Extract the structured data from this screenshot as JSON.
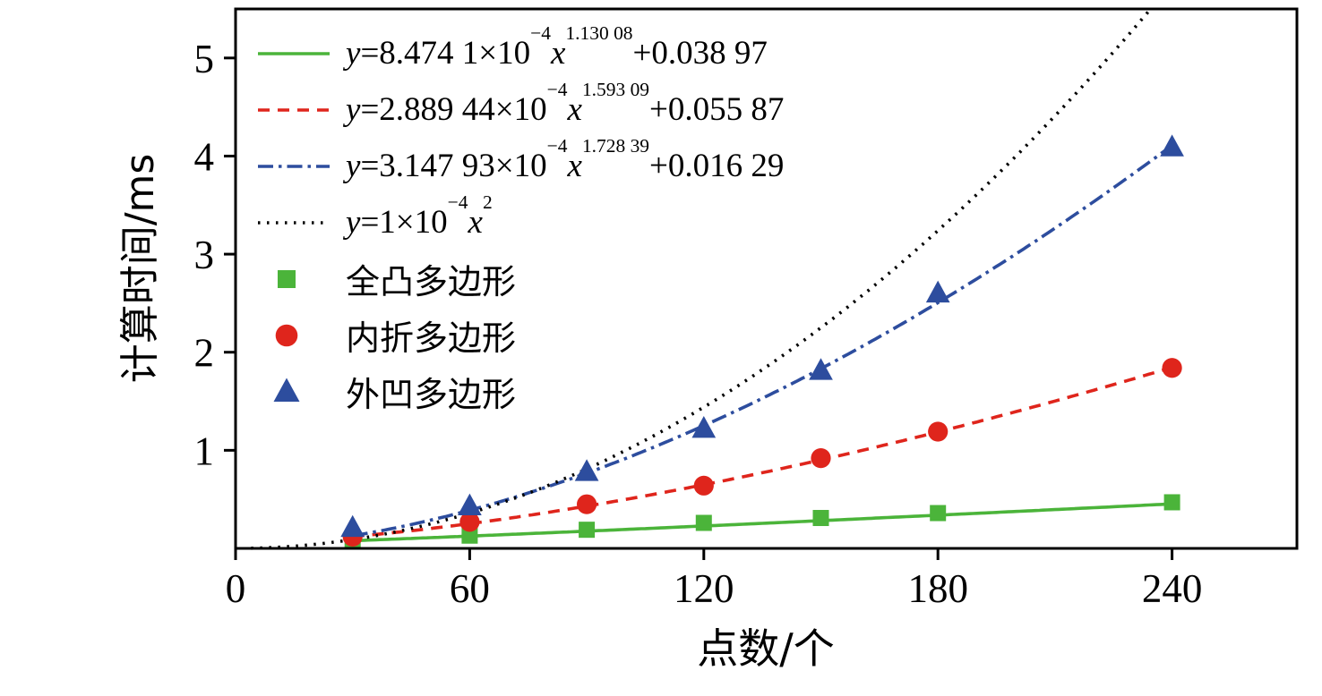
{
  "figure": {
    "background": "#ffffff"
  },
  "chart_data": {
    "type": "scatter",
    "title": "",
    "xlabel": "点数/个",
    "ylabel": "计算时间/ms",
    "xlim": [
      0,
      272
    ],
    "ylim": [
      0,
      5.5
    ],
    "xticks": [
      0,
      60,
      120,
      180,
      240
    ],
    "yticks": [
      1,
      2,
      3,
      4,
      5
    ],
    "grid": false,
    "legend_position": "top-left inside",
    "axis_color": "#000000",
    "tick_direction": "out",
    "fit_curves": [
      {
        "id": "convex-fit",
        "color": "#4bb43a",
        "dash": "solid",
        "a": 0.00084741,
        "b": 1.13008,
        "c": 0.03897,
        "x_start": 30,
        "x_end": 240,
        "equation_text": "y=8.474 1×10^−4 x^1.130 08+0.038 97",
        "parts": {
          "coef": "8.474 1×10",
          "pow10": "−4",
          "xexp": "1.130 08",
          "tail": "+0.038 97"
        }
      },
      {
        "id": "reflex-fit",
        "color": "#df251c",
        "dash": "dashed",
        "a": 0.000288944,
        "b": 1.59309,
        "c": 0.05587,
        "x_start": 30,
        "x_end": 240,
        "equation_text": "y=2.889 44×10^−4 x^1.593 09+0.055 87",
        "parts": {
          "coef": "2.889 44×10",
          "pow10": "−4",
          "xexp": "1.593 09",
          "tail": "+0.055 87"
        }
      },
      {
        "id": "concave-fit",
        "color": "#2d4d9e",
        "dash": "dashdot",
        "a": 0.000314793,
        "b": 1.72839,
        "c": 0.01629,
        "x_start": 30,
        "x_end": 240,
        "equation_text": "y=3.147 93×10^−4 x^1.728 39+0.016 29",
        "parts": {
          "coef": "3.147 93×10",
          "pow10": "−4",
          "xexp": "1.728 39",
          "tail": "+0.016 29"
        }
      },
      {
        "id": "reference-quadratic",
        "color": "#000000",
        "dash": "dotted",
        "a": 0.0001,
        "b": 2,
        "c": 0,
        "x_start": 4,
        "x_end": 240,
        "equation_text": "y=1×10^−4 x^2",
        "parts": {
          "coef": "1×10",
          "pow10": "−4",
          "xexp": "2",
          "tail": ""
        }
      }
    ],
    "series": [
      {
        "name": "全凸多边形",
        "marker": "square",
        "color": "#4bb43a",
        "x": [
          30,
          60,
          90,
          120,
          150,
          180,
          240
        ],
        "y": [
          0.08,
          0.13,
          0.19,
          0.26,
          0.31,
          0.36,
          0.47
        ]
      },
      {
        "name": "内折多边形",
        "marker": "circle",
        "color": "#df251c",
        "x": [
          30,
          60,
          90,
          120,
          150,
          180,
          240
        ],
        "y": [
          0.12,
          0.27,
          0.45,
          0.64,
          0.92,
          1.19,
          1.84
        ]
      },
      {
        "name": "外凹多边形",
        "marker": "triangle",
        "color": "#2d4d9e",
        "x": [
          30,
          60,
          90,
          120,
          150,
          180,
          240
        ],
        "y": [
          0.21,
          0.43,
          0.78,
          1.22,
          1.81,
          2.6,
          4.09
        ]
      }
    ]
  }
}
